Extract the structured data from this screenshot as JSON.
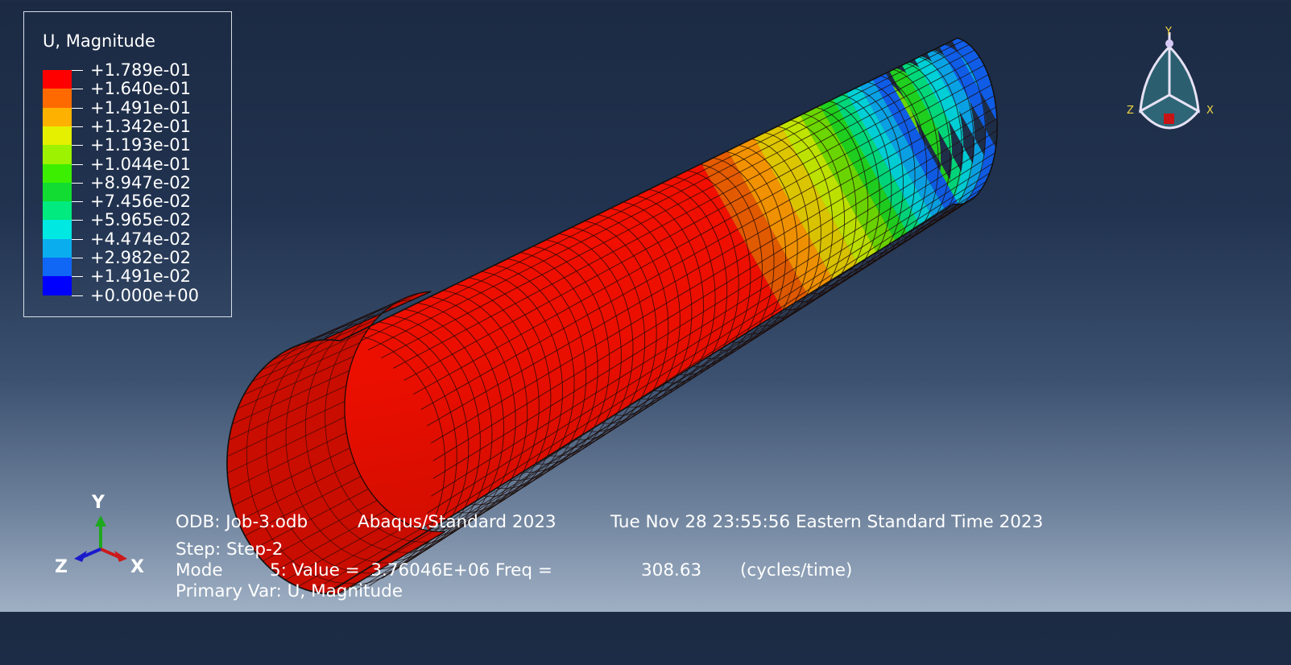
{
  "legend": {
    "title": "U, Magnitude",
    "labels": [
      "+1.789e-01",
      "+1.640e-01",
      "+1.491e-01",
      "+1.342e-01",
      "+1.193e-01",
      "+1.044e-01",
      "+8.947e-02",
      "+7.456e-02",
      "+5.965e-02",
      "+4.474e-02",
      "+2.982e-02",
      "+1.491e-02",
      "+0.000e+00"
    ],
    "colors": [
      "#ff0000",
      "#ff6a00",
      "#ffb100",
      "#e4f000",
      "#9cf200",
      "#3cee00",
      "#12dc31",
      "#00ea7f",
      "#00e8e2",
      "#0aaeef",
      "#1066f5",
      "#0000ff"
    ]
  },
  "info": {
    "odb": "ODB: Job-3.odb",
    "solver": "Abaqus/Standard 2023",
    "date": "Tue Nov 28 23:55:56 Eastern Standard Time 2023",
    "step": "Step: Step-2",
    "mode_label": "Mode",
    "mode_value": "5: Value =  3.76046E+06 Freq =",
    "freq": "308.63",
    "units": "(cycles/time)",
    "primary_var": "Primary Var: U, Magnitude"
  },
  "triad": {
    "x": "X",
    "y": "Y",
    "z": "Z"
  },
  "view_cube": {
    "x": "X",
    "y": "Y",
    "z": "Z"
  },
  "colors": {
    "axis_x": "#cc1a1a",
    "axis_y": "#1ea81e",
    "axis_z": "#1a1acc"
  }
}
